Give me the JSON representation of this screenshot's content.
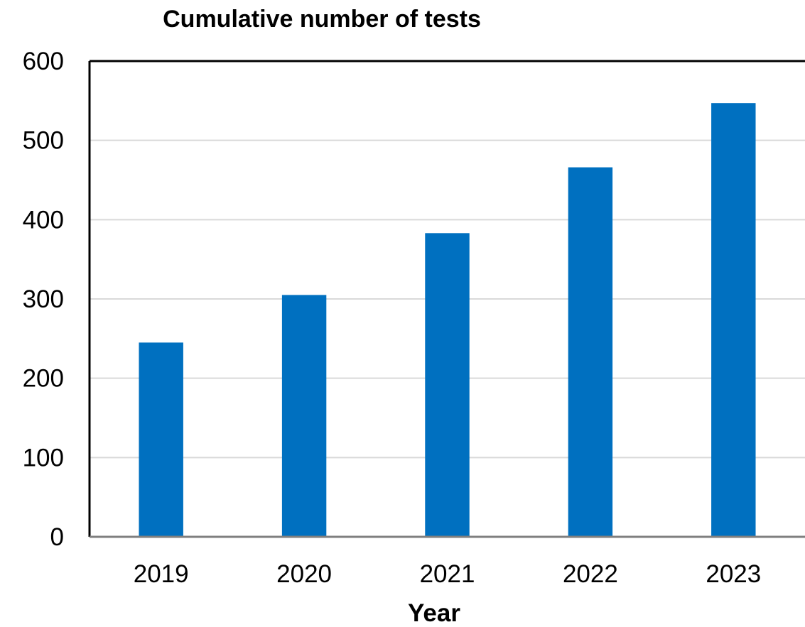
{
  "chart_data": {
    "type": "bar",
    "title": "Cumulative number of tests",
    "xlabel": "Year",
    "ylabel": "",
    "categories": [
      "2019",
      "2020",
      "2021",
      "2022",
      "2023"
    ],
    "values": [
      245,
      305,
      383,
      466,
      547
    ],
    "ylim": [
      0,
      600
    ],
    "yticks": [
      "0",
      "100",
      "200",
      "300",
      "400",
      "500",
      "600"
    ],
    "grid": true,
    "legend": "none",
    "colors": {
      "bar": "#0070C0",
      "grid": "#D9D9D9",
      "axis": "#000000"
    }
  }
}
